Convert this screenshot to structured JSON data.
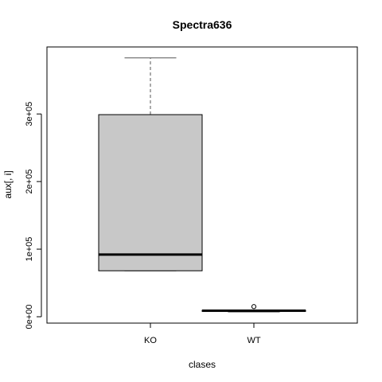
{
  "chart_data": {
    "type": "boxplot",
    "title": "Spectra636",
    "xlabel": "clases",
    "ylabel": "aux[, i]",
    "ylim": [
      0,
      385000
    ],
    "yticks": [
      {
        "value": 0,
        "label": "0e+00"
      },
      {
        "value": 100000,
        "label": "1e+05"
      },
      {
        "value": 200000,
        "label": "2e+05"
      },
      {
        "value": 300000,
        "label": "3e+05"
      }
    ],
    "categories": [
      "KO",
      "WT"
    ],
    "series": [
      {
        "category": "KO",
        "min": 68000,
        "q1": 68000,
        "median": 92000,
        "q3": 299000,
        "max": 383000,
        "outliers": []
      },
      {
        "category": "WT",
        "min": 7000,
        "q1": 8000,
        "median": 9000,
        "q3": 9500,
        "max": 10000,
        "outliers": [
          15000
        ]
      }
    ],
    "grid": false,
    "colors": {
      "box_fill": "#c8c8c8",
      "line": "#000000",
      "whisker": "#555555"
    }
  }
}
